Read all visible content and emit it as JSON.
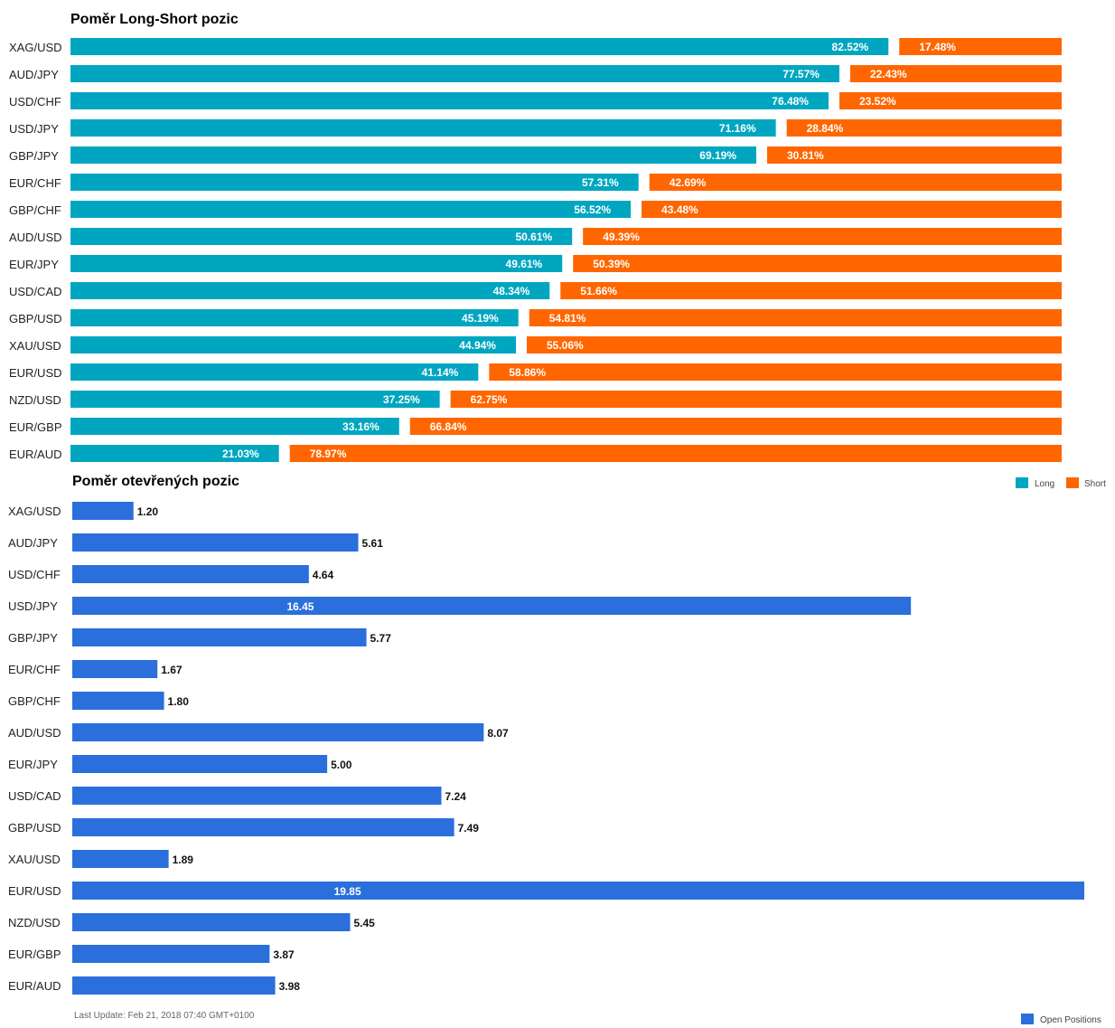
{
  "chart_data": [
    {
      "type": "bar",
      "orientation": "horizontal",
      "stacked": "percent",
      "title": "Poměr Long-Short pozic",
      "categories": [
        "XAG/USD",
        "AUD/JPY",
        "USD/CHF",
        "USD/JPY",
        "GBP/JPY",
        "EUR/CHF",
        "GBP/CHF",
        "AUD/USD",
        "EUR/JPY",
        "USD/CAD",
        "GBP/USD",
        "XAU/USD",
        "EUR/USD",
        "NZD/USD",
        "EUR/GBP",
        "EUR/AUD"
      ],
      "series": [
        {
          "name": "Long",
          "color": "#00a6c0",
          "values": [
            82.52,
            77.57,
            76.48,
            71.16,
            69.19,
            57.31,
            56.52,
            50.61,
            49.61,
            48.34,
            45.19,
            44.94,
            41.14,
            37.25,
            33.16,
            21.03
          ]
        },
        {
          "name": "Short",
          "color": "#ff6600",
          "values": [
            17.48,
            22.43,
            23.52,
            28.84,
            30.81,
            42.69,
            43.48,
            49.39,
            50.39,
            51.66,
            54.81,
            55.06,
            58.86,
            62.75,
            66.84,
            78.97
          ]
        }
      ],
      "value_labels": {
        "Long": [
          "82.52%",
          "77.57%",
          "76.48%",
          "71.16%",
          "69.19%",
          "57.31%",
          "56.52%",
          "50.61%",
          "49.61%",
          "48.34%",
          "45.19%",
          "44.94%",
          "41.14%",
          "37.25%",
          "33.16%",
          "21.03%"
        ],
        "Short": [
          "17.48%",
          "22.43%",
          "23.52%",
          "28.84%",
          "30.81%",
          "42.69%",
          "43.48%",
          "49.39%",
          "50.39%",
          "51.66%",
          "54.81%",
          "55.06%",
          "58.86%",
          "62.75%",
          "66.84%",
          "78.97%"
        ]
      },
      "xlim": [
        0,
        100
      ],
      "grid": false,
      "legend_placement": "bottom-right"
    },
    {
      "type": "bar",
      "orientation": "horizontal",
      "title": "Poměr otevřených pozic",
      "categories": [
        "XAG/USD",
        "AUD/JPY",
        "USD/CHF",
        "USD/JPY",
        "GBP/JPY",
        "EUR/CHF",
        "GBP/CHF",
        "AUD/USD",
        "EUR/JPY",
        "USD/CAD",
        "GBP/USD",
        "XAU/USD",
        "EUR/USD",
        "NZD/USD",
        "EUR/GBP",
        "EUR/AUD"
      ],
      "series": [
        {
          "name": "Open Positions",
          "color": "#2a6fdb",
          "values": [
            1.2,
            5.61,
            4.64,
            16.45,
            5.77,
            1.67,
            1.8,
            8.07,
            5.0,
            7.24,
            7.49,
            1.89,
            19.85,
            5.45,
            3.87,
            3.98
          ]
        }
      ],
      "value_labels": [
        "1.20",
        "5.61",
        "4.64",
        "16.45",
        "5.77",
        "1.67",
        "1.80",
        "8.07",
        "5.00",
        "7.24",
        "7.49",
        "1.89",
        "19.85",
        "5.45",
        "3.87",
        "3.98"
      ],
      "xlim": [
        0,
        19.85
      ],
      "grid": false,
      "legend_placement": "bottom-right"
    }
  ],
  "footer": {
    "last_update": "Last Update: Feb 21, 2018 07:40 GMT+0100"
  }
}
